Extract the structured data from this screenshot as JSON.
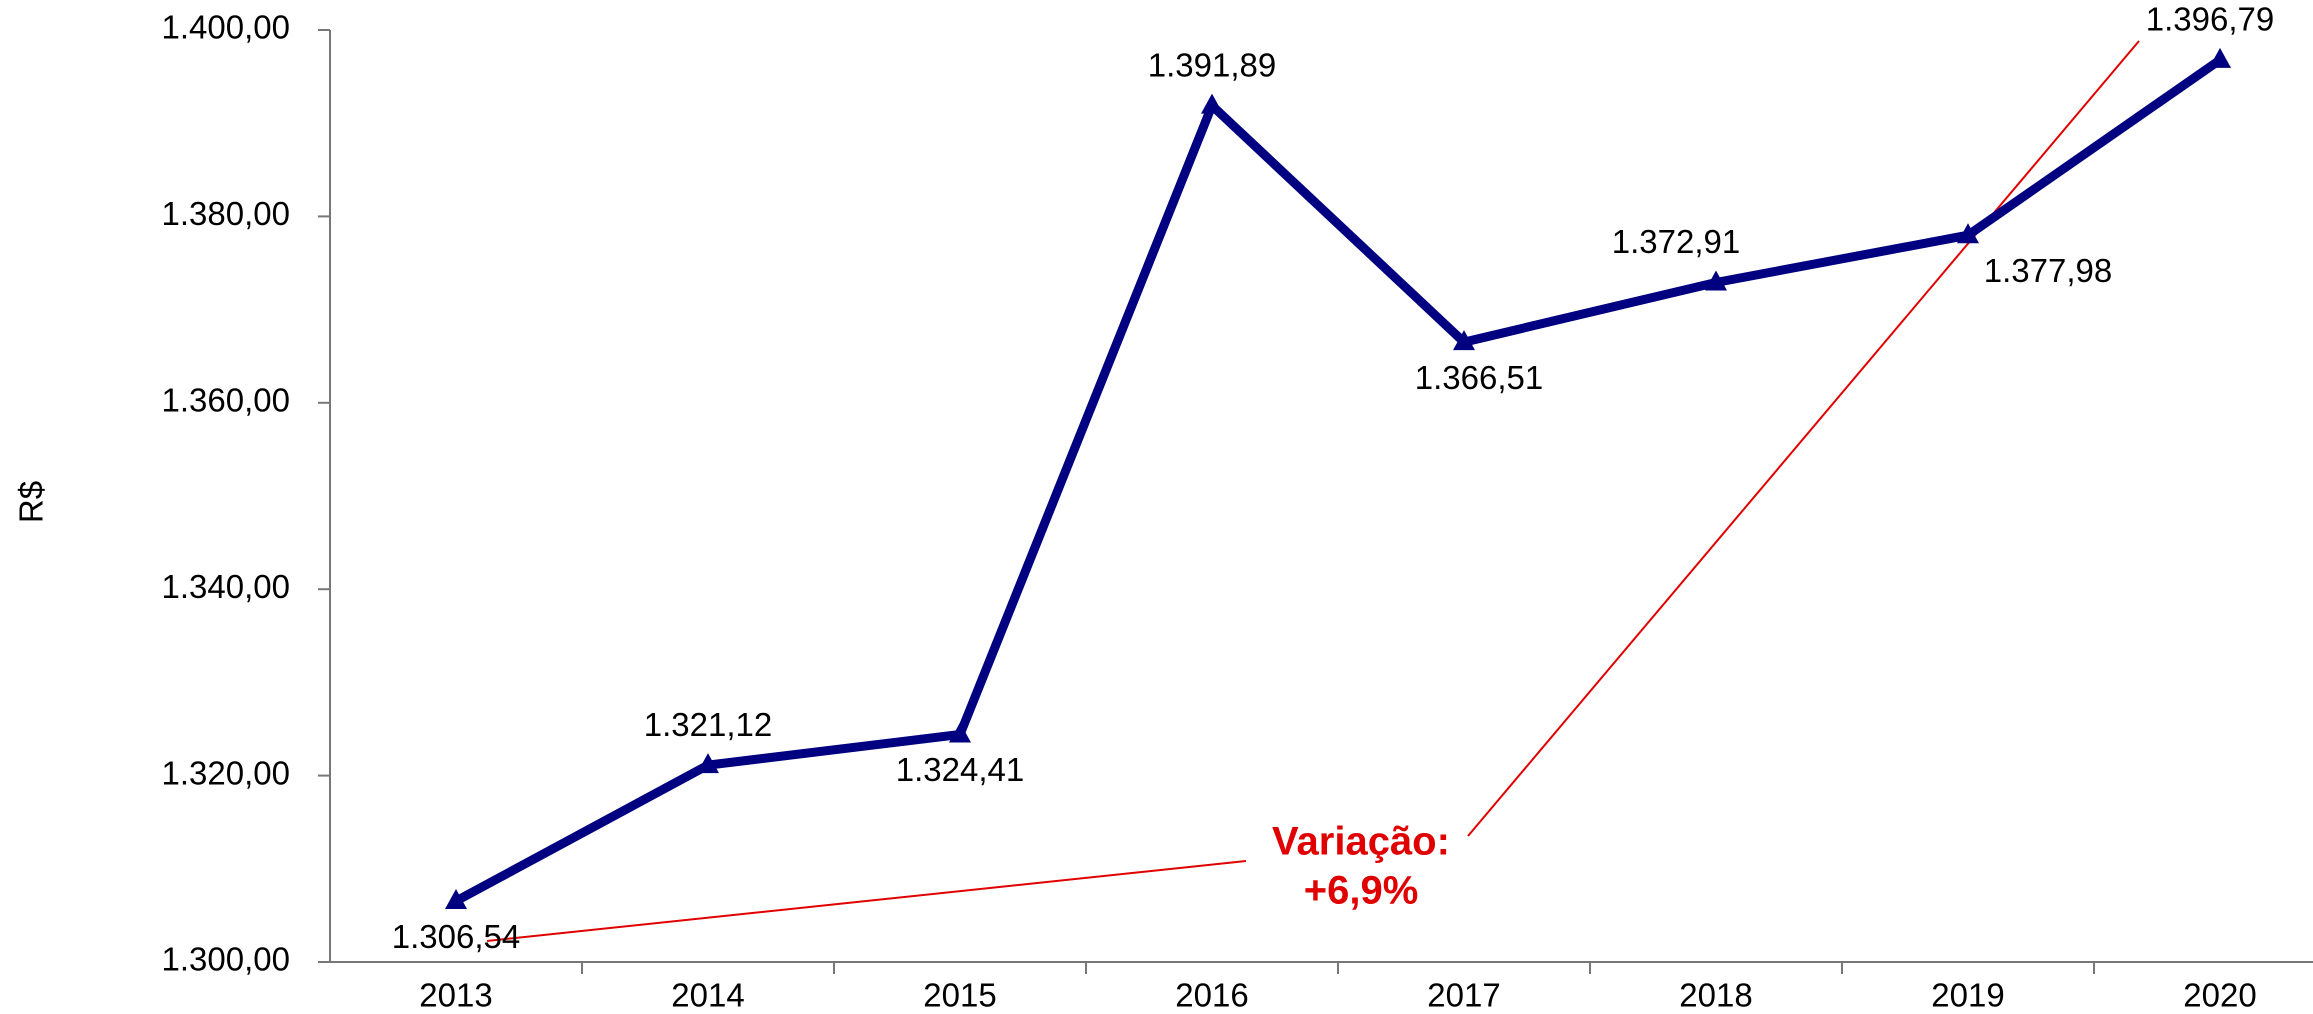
{
  "chart_data": {
    "type": "line",
    "y_label": "R$",
    "categories": [
      "2013",
      "2014",
      "2015",
      "2016",
      "2017",
      "2018",
      "2019",
      "2020"
    ],
    "series": [
      {
        "color": "#000080",
        "values": [
          1306.54,
          1321.12,
          1324.41,
          1391.89,
          1366.51,
          1372.91,
          1377.98,
          1396.79
        ],
        "value_labels": [
          "1.306,54",
          "1.321,12",
          "1.324,41",
          "1.391,89",
          "1.366,51",
          "1.372,91",
          "1.377,98",
          "1.396,79"
        ]
      }
    ],
    "ylim": [
      1300,
      1400
    ],
    "yticks": [
      {
        "value": 1300,
        "label": "1.300,00"
      },
      {
        "value": 1320,
        "label": "1.320,00"
      },
      {
        "value": 1340,
        "label": "1.340,00"
      },
      {
        "value": 1360,
        "label": "1.360,00"
      },
      {
        "value": 1380,
        "label": "1.380,00"
      },
      {
        "value": 1400,
        "label": "1.400,00"
      }
    ],
    "annotation": [
      "Variação:",
      "+6,9%"
    ]
  }
}
